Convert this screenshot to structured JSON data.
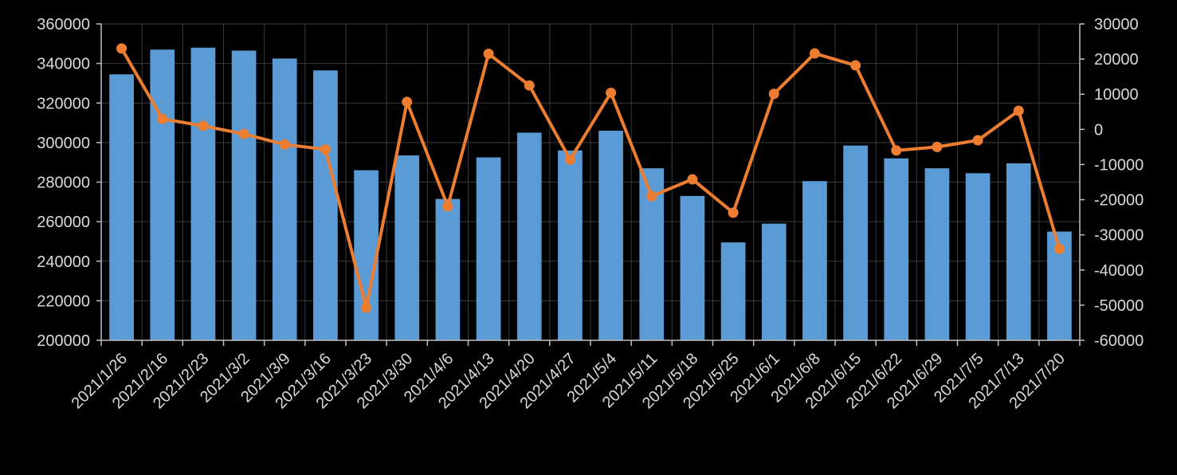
{
  "chart_data": {
    "type": "bar+line",
    "title": "",
    "background": "#000000",
    "categories": [
      "2021/1/26",
      "2021/2/16",
      "2021/2/23",
      "2021/3/2",
      "2021/3/9",
      "2021/3/16",
      "2021/3/23",
      "2021/3/30",
      "2021/4/6",
      "2021/4/13",
      "2021/4/20",
      "2021/4/27",
      "2021/5/4",
      "2021/5/11",
      "2021/5/18",
      "2021/5/25",
      "2021/6/1",
      "2021/6/8",
      "2021/6/15",
      "2021/6/22",
      "2021/6/29",
      "2021/7/5",
      "2021/7/13",
      "2021/7/20"
    ],
    "series": [
      {
        "name": "bars",
        "type": "bar",
        "axis": "left",
        "color": "#5b9bd5",
        "values": [
          334500,
          347000,
          348000,
          346500,
          342500,
          336500,
          286000,
          293500,
          271500,
          292500,
          305000,
          296000,
          306000,
          287000,
          273000,
          249500,
          259000,
          280500,
          298500,
          292000,
          287000,
          284500,
          289500,
          255000
        ]
      },
      {
        "name": "line",
        "type": "line",
        "axis": "right",
        "color": "#ed7d31",
        "values": [
          23000,
          3000,
          1000,
          -1300,
          -4300,
          -5700,
          -50700,
          7800,
          -21900,
          21500,
          12500,
          -8600,
          10400,
          -19000,
          -14200,
          -23700,
          10100,
          21600,
          18200,
          -6000,
          -5000,
          -3100,
          5300,
          -34000
        ]
      }
    ],
    "y_left": {
      "min": 200000,
      "max": 360000,
      "ticks": [
        "200000",
        "220000",
        "240000",
        "260000",
        "280000",
        "300000",
        "320000",
        "340000",
        "360000"
      ]
    },
    "y_right": {
      "min": -60000,
      "max": 30000,
      "ticks": [
        "-60000",
        "-50000",
        "-40000",
        "-30000",
        "-20000",
        "-10000",
        "0",
        "10000",
        "20000",
        "30000"
      ]
    },
    "grid": true,
    "grid_color": "#3a3a3a",
    "axis_color": "#bfbfbf",
    "text_color": "#d9d9d9",
    "legend": "none"
  }
}
